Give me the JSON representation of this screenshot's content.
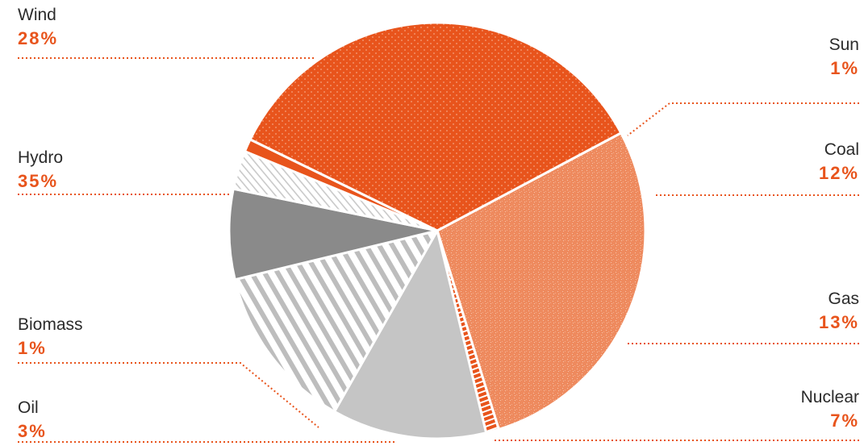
{
  "chart_data": {
    "type": "pie",
    "slices": [
      {
        "label": "Wind",
        "value": 28,
        "value_label": "28%",
        "fill": "#ee8a5e",
        "pattern": "speckle"
      },
      {
        "label": "Sun",
        "value": 1,
        "value_label": "1%",
        "fill": "#e8541c",
        "pattern": "stripes"
      },
      {
        "label": "Coal",
        "value": 12,
        "value_label": "12%",
        "fill": "#c5c5c5",
        "pattern": "solid"
      },
      {
        "label": "Gas",
        "value": 13,
        "value_label": "13%",
        "fill": "#c8c8c8",
        "pattern": "hatch"
      },
      {
        "label": "Nuclear",
        "value": 7,
        "value_label": "7%",
        "fill": "#8a8a8a",
        "pattern": "solid"
      },
      {
        "label": "Oil",
        "value": 3,
        "value_label": "3%",
        "fill": "#d2d2d2",
        "pattern": "fine-hatch"
      },
      {
        "label": "Biomass",
        "value": 1,
        "value_label": "1%",
        "fill": "#e8541c",
        "pattern": "solid"
      },
      {
        "label": "Hydro",
        "value": 35,
        "value_label": "35%",
        "fill": "#e8541c",
        "pattern": "dots"
      }
    ],
    "start_angle_deg": -28,
    "accent_color": "#e8541c",
    "leader_color": "#e8541c"
  }
}
